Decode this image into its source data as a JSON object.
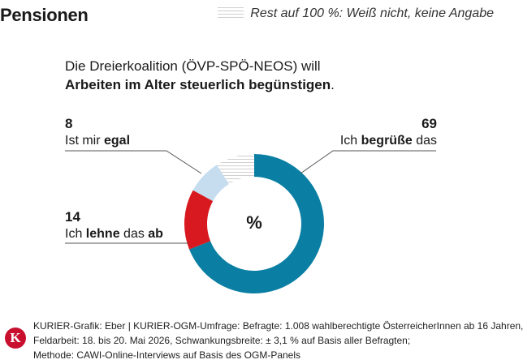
{
  "header": {
    "title": "Pensionen"
  },
  "legend": {
    "rest_label": "Rest auf 100 %: Weiß nicht, keine Angabe"
  },
  "question": {
    "line1": "Die Dreierkoalition (ÖVP-SPÖ-NEOS) will",
    "line2": "Arbeiten im Alter steuerlich begünstigen",
    "line2_end": "."
  },
  "chart_data": {
    "type": "pie",
    "center_label": "%",
    "slices": [
      {
        "key": "begruesse",
        "value": 69,
        "color": "#0a7fa3",
        "text_pre": "Ich ",
        "text_bold": "begrüße",
        "text_post": " das"
      },
      {
        "key": "ab",
        "value": 14,
        "color": "#d81920",
        "text_pre": "Ich ",
        "text_bold": "lehne",
        "text_mid": " das ",
        "text_bold2": "ab"
      },
      {
        "key": "egal",
        "value": 8,
        "color": "#c6dcef",
        "text_pre": "Ist mir ",
        "text_bold": "egal"
      },
      {
        "key": "rest",
        "value": 9,
        "color": "hatch"
      }
    ]
  },
  "footer": {
    "line1": "KURIER-Grafik: Eber | KURIER-OGM-Umfrage: Befragte: 1.008 wahlberechtigte ÖsterreicherInnen ab 16 Jahren,",
    "line2": "Feldarbeit: 18. bis 20. Mai 2026, Schwankungsbreite: ± 3,1 % auf Basis aller Befragten;",
    "line3": "Methode: CAWI-Online-Interviews auf Basis des OGM-Panels",
    "logo_letter": "K"
  }
}
